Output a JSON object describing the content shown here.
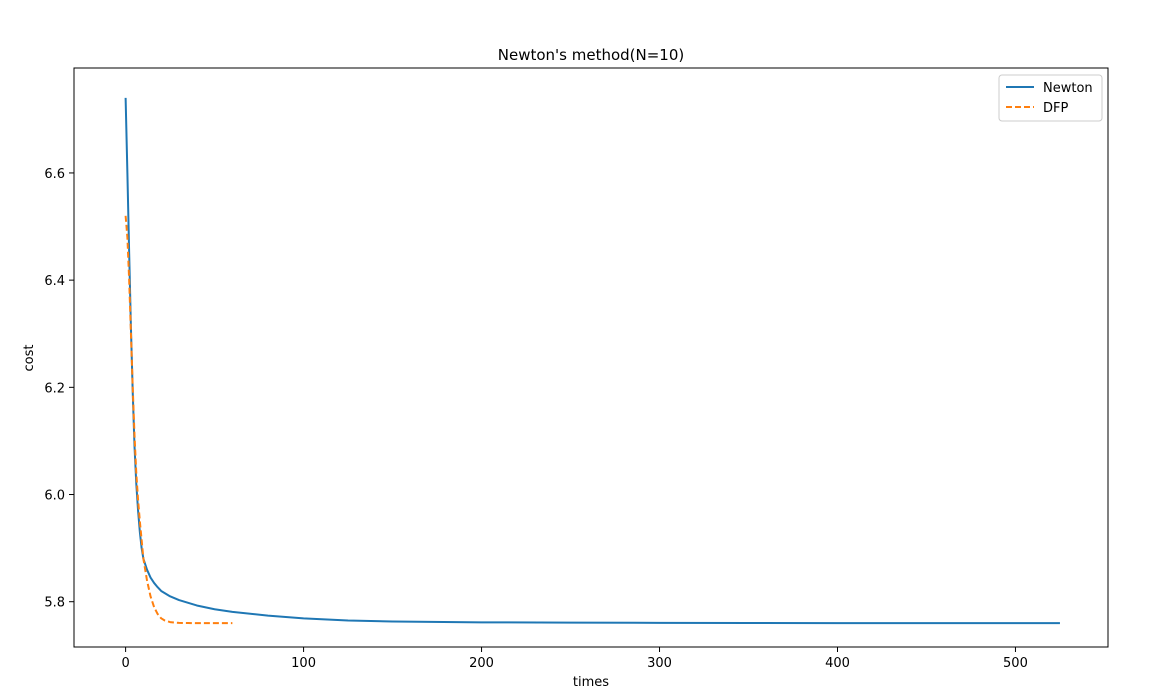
{
  "chart_data": {
    "type": "line",
    "title": "Newton's method(N=10)",
    "xlabel": "times",
    "ylabel": "cost",
    "xlim": [
      -29,
      552
    ],
    "ylim": [
      5.7155,
      6.7958
    ],
    "xticks": [
      0,
      100,
      200,
      300,
      400,
      500
    ],
    "yticks": [
      5.8,
      6.0,
      6.2,
      6.4,
      6.6
    ],
    "xtick_labels": [
      "0",
      "100",
      "200",
      "300",
      "400",
      "500"
    ],
    "ytick_labels": [
      "5.8",
      "6.0",
      "6.2",
      "6.4",
      "6.6"
    ],
    "grid": false,
    "legend_position": "top-right",
    "series": [
      {
        "name": "Newton",
        "color": "#1f77b4",
        "style": "solid",
        "x": [
          0,
          1,
          2,
          3,
          4,
          5,
          6,
          7,
          8,
          9,
          10,
          12,
          14,
          16,
          18,
          20,
          25,
          30,
          40,
          50,
          60,
          80,
          100,
          125,
          150,
          200,
          250,
          300,
          350,
          400,
          450,
          500,
          525
        ],
        "y": [
          6.74,
          6.6,
          6.45,
          6.31,
          6.19,
          6.09,
          6.02,
          5.97,
          5.93,
          5.9,
          5.88,
          5.86,
          5.845,
          5.835,
          5.827,
          5.82,
          5.81,
          5.803,
          5.793,
          5.786,
          5.781,
          5.774,
          5.769,
          5.765,
          5.763,
          5.7615,
          5.761,
          5.7605,
          5.7602,
          5.7601,
          5.76,
          5.76,
          5.76
        ]
      },
      {
        "name": "DFP",
        "color": "#ff7f0e",
        "style": "dashed",
        "x": [
          0,
          1,
          2,
          3,
          4,
          5,
          6,
          7,
          8,
          9,
          10,
          12,
          14,
          16,
          18,
          20,
          22,
          25,
          28,
          30,
          35,
          40,
          45,
          50,
          55,
          60
        ],
        "y": [
          6.52,
          6.48,
          6.4,
          6.3,
          6.2,
          6.11,
          6.04,
          5.99,
          5.95,
          5.915,
          5.88,
          5.84,
          5.81,
          5.79,
          5.777,
          5.769,
          5.765,
          5.762,
          5.761,
          5.7605,
          5.7602,
          5.76,
          5.76,
          5.76,
          5.76,
          5.76
        ]
      }
    ]
  }
}
